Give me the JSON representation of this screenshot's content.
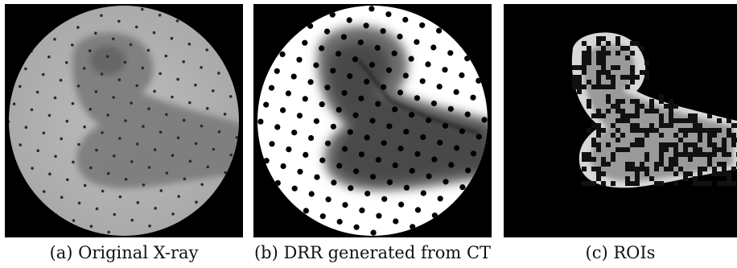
{
  "captions": {
    "a": "(a) Original X-ray",
    "b": "(b) DRR generated from CT",
    "c": "(c) ROIs"
  }
}
